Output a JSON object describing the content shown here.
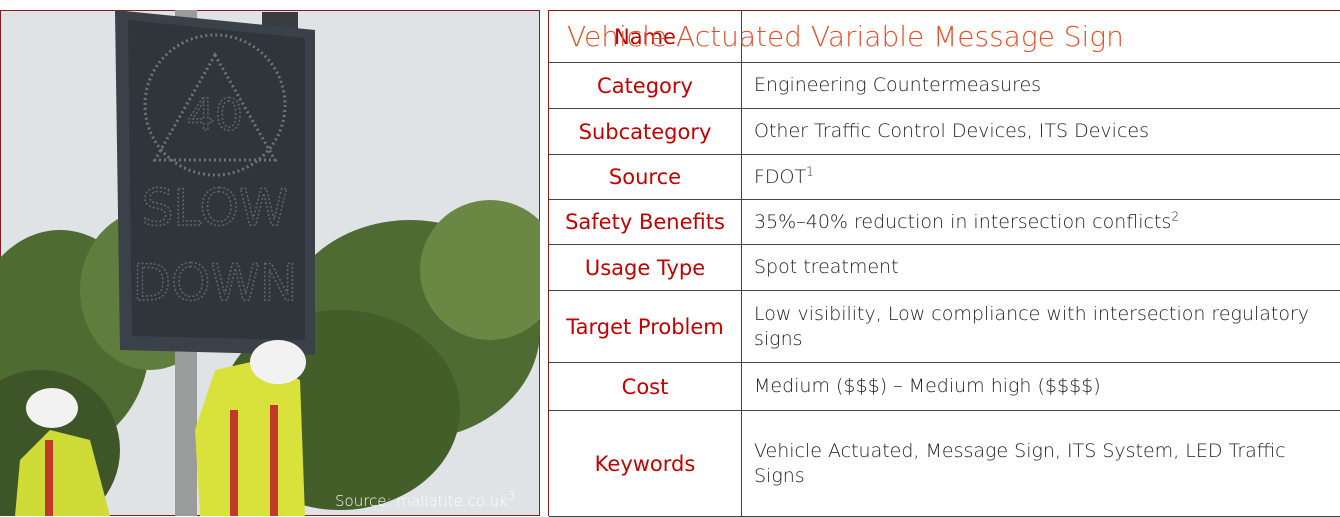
{
  "image": {
    "sign_number": "40",
    "sign_lines": [
      "SLOW",
      "DOWN"
    ],
    "caption": "Source: mallatite.co.uk",
    "caption_sup": "3"
  },
  "table": {
    "rows": [
      {
        "label": "Name",
        "value": "Vehicle Actuated Variable Message Sign"
      },
      {
        "label": "Category",
        "value": "Engineering Countermeasures"
      },
      {
        "label": "Subcategory",
        "value": "Other Traffic Control Devices, ITS Devices"
      },
      {
        "label": "Source",
        "value": "FDOT",
        "sup": "1"
      },
      {
        "label": "Safety Benefits",
        "value": "35%–40% reduction in intersection conflicts",
        "sup": "2"
      },
      {
        "label": "Usage Type",
        "value": "Spot treatment"
      },
      {
        "label": "Target Problem",
        "value": "Low visibility, Low compliance with intersection regulatory signs"
      },
      {
        "label": "Cost",
        "value": "Medium ($$$) – Medium high ($$$$)"
      },
      {
        "label": "Keywords",
        "value": "Vehicle Actuated, Message Sign, ITS System, LED Traffic Signs"
      }
    ]
  }
}
